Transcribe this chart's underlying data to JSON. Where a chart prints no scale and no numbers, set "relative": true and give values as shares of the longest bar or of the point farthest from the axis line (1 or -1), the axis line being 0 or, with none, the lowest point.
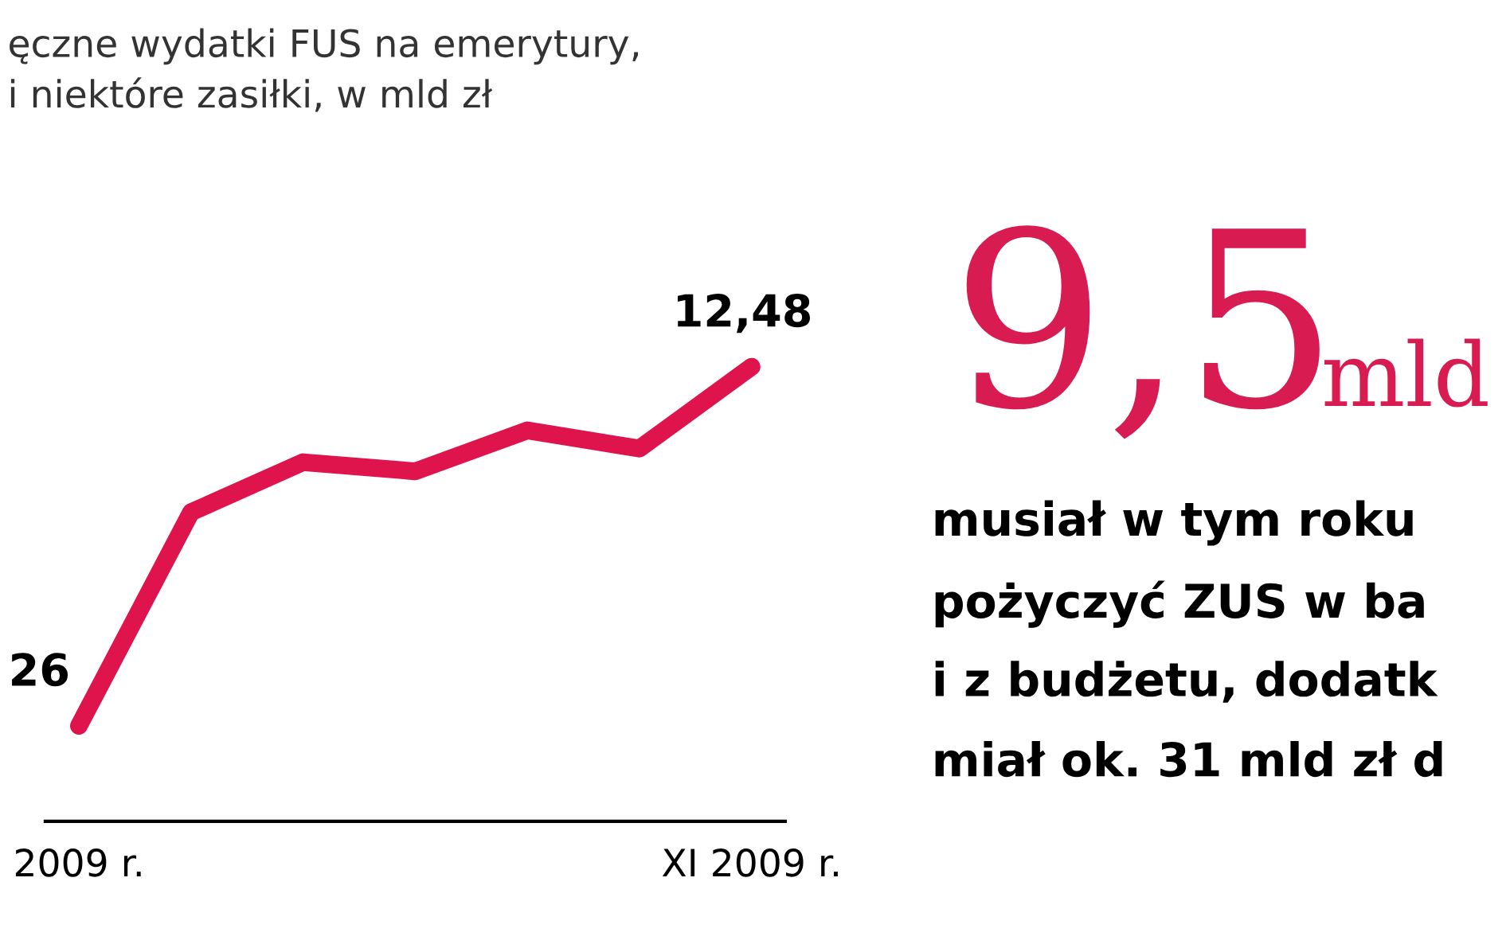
{
  "chart_data": [
    {
      "type": "line",
      "title": "ęczne wydatki FUS na emerytury,\ni niektóre zasiłki, w mld zł",
      "relative": true,
      "categories": [
        "2009 r.",
        null,
        null,
        null,
        null,
        null,
        "XI 2009 r."
      ],
      "series": [
        {
          "color": "#e0144c",
          "values": [
            0.21,
            0.68,
            0.79,
            0.77,
            0.86,
            0.82,
            1.0
          ]
        }
      ],
      "annotations": [
        {
          "text": "26",
          "x": "2009 r.",
          "y": 0.21
        },
        {
          "text": "12,48",
          "x": "XI 2009 r.",
          "y": 1.0
        }
      ],
      "grid": false,
      "legend": false
    },
    {
      "type": "other",
      "title": "9,5",
      "subtitle": "mld",
      "annotations": [
        "musiał w tym roku",
        "pożyczyć ZUS w ba",
        "i z budżetu, dodatk",
        "miał ok. 31 mld zł d"
      ]
    }
  ]
}
